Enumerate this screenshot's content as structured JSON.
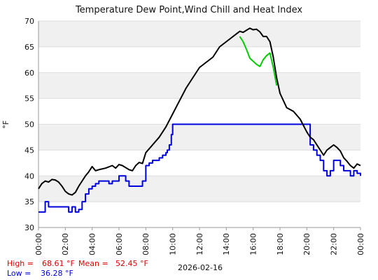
{
  "chart_data": {
    "type": "line",
    "title": "Temperature Dew Point,Wind Chill and Heat Index",
    "ylabel": "°F",
    "xlabel": "2026-02-16",
    "ylim": [
      30,
      70
    ],
    "xlim": [
      0,
      24
    ],
    "yticks": [
      "30",
      "35",
      "40",
      "45",
      "50",
      "55",
      "60",
      "65",
      "70"
    ],
    "xticks": [
      "00:00",
      "02:00",
      "04:00",
      "06:00",
      "08:00",
      "10:00",
      "12:00",
      "14:00",
      "16:00",
      "18:00",
      "20:00",
      "22:00",
      "00:00"
    ],
    "grid": true,
    "banding": "alternating gray bands",
    "colors": {
      "temperature": "#000000",
      "heat_index": "#00cc00",
      "low_series": "#0000dd",
      "high_text": "#dd0000",
      "low_text": "#0000dd"
    },
    "series": [
      {
        "key": "temperature",
        "x": [
          0,
          0.25,
          0.5,
          0.75,
          1,
          1.25,
          1.5,
          1.75,
          2,
          2.25,
          2.5,
          2.75,
          3,
          3.25,
          3.5,
          3.75,
          4,
          4.25,
          4.5,
          5,
          5.5,
          5.75,
          6,
          6.25,
          6.5,
          6.75,
          7,
          7.25,
          7.5,
          7.75,
          8,
          8.5,
          9,
          9.5,
          10,
          10.5,
          11,
          11.5,
          12,
          12.5,
          13,
          13.5,
          14,
          14.5,
          14.75,
          15,
          15.25,
          15.5,
          15.75,
          16,
          16.25,
          16.5,
          16.75,
          17,
          17.25,
          17.5,
          17.75,
          18,
          18.5,
          19,
          19.5,
          20,
          20.25,
          20.5,
          20.75,
          21,
          21.25,
          21.5,
          21.75,
          22,
          22.25,
          22.5,
          22.75,
          23,
          23.25,
          23.5,
          23.75,
          24
        ],
        "y": [
          37.5,
          38.5,
          39.0,
          38.8,
          39.3,
          39.2,
          38.8,
          38.0,
          37.0,
          36.5,
          36.3,
          36.8,
          38.0,
          39.0,
          40.0,
          40.8,
          41.8,
          41.0,
          41.2,
          41.5,
          42.0,
          41.5,
          42.2,
          42.0,
          41.6,
          41.2,
          41.0,
          42.0,
          42.6,
          42.4,
          44.5,
          46.0,
          47.5,
          49.5,
          52.0,
          54.5,
          57.0,
          59.0,
          61.0,
          62.0,
          63.0,
          65.0,
          66.0,
          67.0,
          67.5,
          68.0,
          67.8,
          68.2,
          68.6,
          68.3,
          68.4,
          67.9,
          67.0,
          67.0,
          66.0,
          63.0,
          59.0,
          56.0,
          53.2,
          52.5,
          51.0,
          48.5,
          47.5,
          47.0,
          46.0,
          45.0,
          44.0,
          45.0,
          45.5,
          46.0,
          45.5,
          44.8,
          43.5,
          42.8,
          42.0,
          41.5,
          42.3,
          42.0
        ]
      },
      {
        "key": "heat_index",
        "x": [
          15.0,
          15.25,
          15.5,
          15.75,
          16.0,
          16.25,
          16.5,
          16.75,
          17.0,
          17.25,
          17.5,
          17.75
        ],
        "y": [
          67.0,
          66.0,
          64.5,
          62.8,
          62.2,
          61.6,
          61.2,
          62.5,
          63.3,
          63.8,
          61.0,
          57.5
        ]
      },
      {
        "key": "low_series",
        "x": [
          0,
          0.25,
          0.5,
          0.75,
          1,
          1.25,
          1.5,
          1.75,
          2,
          2.25,
          2.5,
          2.75,
          3,
          3.25,
          3.5,
          3.75,
          4,
          4.25,
          4.5,
          5,
          5.25,
          5.5,
          5.75,
          6,
          6.25,
          6.5,
          6.75,
          7,
          7.25,
          7.5,
          7.75,
          8,
          8.25,
          8.5,
          8.75,
          9,
          9.25,
          9.5,
          9.6,
          9.75,
          9.9,
          10,
          20,
          20.25,
          20.5,
          20.75,
          21,
          21.25,
          21.5,
          21.75,
          22,
          22.25,
          22.5,
          22.75,
          23,
          23.25,
          23.5,
          23.75,
          24
        ],
        "y": [
          33,
          33,
          35,
          34,
          34,
          34,
          34,
          34,
          34,
          33,
          34,
          33,
          33.5,
          35,
          36.5,
          37.5,
          38,
          38.5,
          39,
          39,
          38.5,
          39,
          39,
          40,
          40,
          39,
          38,
          38,
          38,
          38,
          39,
          42,
          42.5,
          43,
          43,
          43.5,
          44,
          44.5,
          45,
          46,
          48,
          50,
          50,
          46,
          45,
          44,
          43,
          41,
          40,
          41,
          43,
          43,
          42,
          41,
          41,
          40,
          41,
          40.5,
          40
        ]
      }
    ],
    "stats": {
      "high_label": "High =",
      "high_value": "68.61 °F",
      "mean_label": "Mean =",
      "mean_value": "52.45 °F",
      "low_label": "Low =",
      "low_value": "36.28 °F"
    }
  }
}
